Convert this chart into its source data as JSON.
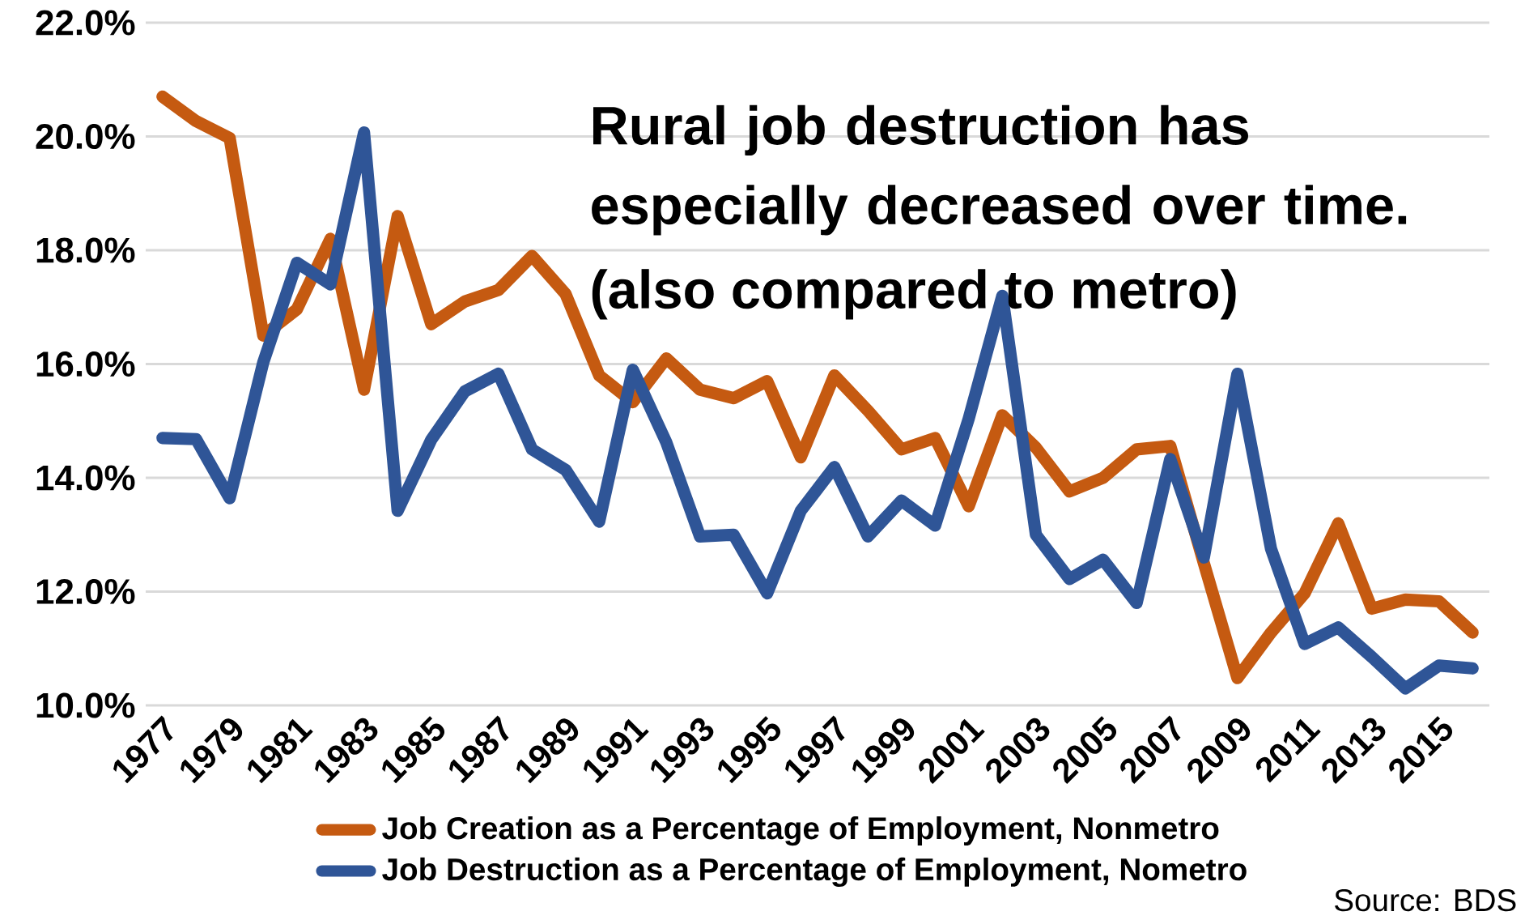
{
  "chart_data": {
    "type": "line",
    "title": "Rural job destruction has especially decreased over time.",
    "subtitle": "(also compared to metro)",
    "annotations": [
      "Source: BDS"
    ],
    "x": [
      1977,
      1978,
      1979,
      1980,
      1981,
      1982,
      1983,
      1984,
      1985,
      1986,
      1987,
      1988,
      1989,
      1990,
      1991,
      1992,
      1993,
      1994,
      1995,
      1996,
      1997,
      1998,
      1999,
      2000,
      2001,
      2002,
      2003,
      2004,
      2005,
      2006,
      2007,
      2008,
      2009,
      2010,
      2011,
      2012,
      2013,
      2014,
      2015,
      2016
    ],
    "series": [
      {
        "name": "Job Creation as a Percentage of Employment, Nonmetro",
        "color": "#c55a11",
        "values": [
          20.7,
          20.27,
          19.97,
          16.5,
          16.96,
          18.2,
          15.55,
          18.6,
          16.7,
          17.1,
          17.3,
          17.9,
          17.23,
          15.8,
          15.33,
          16.1,
          15.55,
          15.4,
          15.7,
          14.36,
          15.8,
          15.18,
          14.5,
          14.7,
          13.5,
          15.1,
          14.53,
          13.76,
          14.0,
          14.5,
          14.56,
          12.5,
          10.48,
          11.28,
          11.97,
          13.2,
          11.7,
          11.86,
          11.83,
          11.28
        ]
      },
      {
        "name": "Job Destruction as a Percentage of Employment, Nometro",
        "color": "#2f5597",
        "values": [
          14.7,
          14.68,
          13.64,
          16.03,
          17.78,
          17.4,
          20.07,
          13.42,
          14.67,
          15.52,
          15.83,
          14.5,
          14.14,
          13.23,
          15.9,
          14.62,
          12.97,
          13.0,
          11.97,
          13.42,
          14.19,
          12.97,
          13.6,
          13.16,
          15.04,
          17.2,
          13.0,
          12.22,
          12.56,
          11.8,
          14.33,
          12.6,
          15.83,
          12.75,
          11.08,
          11.37,
          10.85,
          10.3,
          10.7,
          10.65
        ]
      }
    ],
    "xlim": [
      1976.5,
      2016.5
    ],
    "xticks": [
      1977,
      1979,
      1981,
      1983,
      1985,
      1987,
      1989,
      1991,
      1993,
      1995,
      1997,
      1999,
      2001,
      2003,
      2005,
      2007,
      2009,
      2011,
      2013,
      2015
    ],
    "ylim": [
      10,
      22
    ],
    "yticks": [
      {
        "value": 10,
        "label": "10.0%"
      },
      {
        "value": 12,
        "label": "12.0%"
      },
      {
        "value": 14,
        "label": "14.0%"
      },
      {
        "value": 16,
        "label": "16.0%"
      },
      {
        "value": 18,
        "label": "18.0%"
      },
      {
        "value": 20,
        "label": "20.0%"
      },
      {
        "value": 22,
        "label": "22.0%"
      }
    ],
    "grid": "y",
    "legend": "bottom",
    "marker": "none",
    "line_style": "solid"
  }
}
